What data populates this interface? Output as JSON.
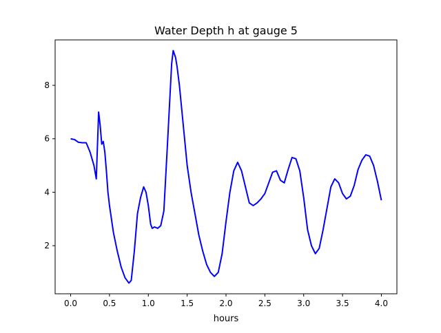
{
  "chart_data": {
    "type": "line",
    "title": "Water Depth h at gauge 5",
    "xlabel": "hours",
    "ylabel": "",
    "xlim": [
      -0.2,
      4.2
    ],
    "ylim": [
      0.2,
      9.7
    ],
    "xticks": [
      0.0,
      0.5,
      1.0,
      1.5,
      2.0,
      2.5,
      3.0,
      3.5,
      4.0
    ],
    "xtick_labels": [
      "0.0",
      "0.5",
      "1.0",
      "1.5",
      "2.0",
      "2.5",
      "3.0",
      "3.5",
      "4.0"
    ],
    "yticks": [
      2,
      4,
      6,
      8
    ],
    "ytick_labels": [
      "2",
      "4",
      "6",
      "8"
    ],
    "grid": false,
    "series": [
      {
        "color": "#0000ff",
        "x": [
          0.0,
          0.05,
          0.1,
          0.15,
          0.2,
          0.25,
          0.3,
          0.33,
          0.36,
          0.38,
          0.4,
          0.42,
          0.44,
          0.46,
          0.48,
          0.5,
          0.55,
          0.6,
          0.65,
          0.7,
          0.75,
          0.78,
          0.82,
          0.86,
          0.9,
          0.94,
          0.97,
          1.0,
          1.03,
          1.05,
          1.08,
          1.12,
          1.16,
          1.2,
          1.25,
          1.3,
          1.32,
          1.35,
          1.37,
          1.4,
          1.45,
          1.5,
          1.55,
          1.6,
          1.65,
          1.7,
          1.75,
          1.8,
          1.85,
          1.9,
          1.95,
          2.0,
          2.05,
          2.1,
          2.15,
          2.2,
          2.25,
          2.3,
          2.35,
          2.4,
          2.45,
          2.5,
          2.55,
          2.6,
          2.65,
          2.7,
          2.75,
          2.8,
          2.85,
          2.9,
          2.95,
          3.0,
          3.05,
          3.1,
          3.15,
          3.2,
          3.25,
          3.3,
          3.35,
          3.4,
          3.45,
          3.5,
          3.55,
          3.6,
          3.65,
          3.7,
          3.75,
          3.8,
          3.85,
          3.9,
          3.95,
          4.0
        ],
        "y": [
          6.0,
          5.97,
          5.87,
          5.85,
          5.85,
          5.5,
          5.0,
          4.5,
          7.0,
          6.5,
          5.8,
          5.9,
          5.5,
          4.8,
          4.0,
          3.5,
          2.5,
          1.8,
          1.2,
          0.8,
          0.6,
          0.7,
          1.8,
          3.2,
          3.8,
          4.2,
          4.0,
          3.5,
          2.8,
          2.65,
          2.7,
          2.65,
          2.75,
          3.3,
          6.0,
          8.8,
          9.3,
          9.05,
          8.7,
          8.0,
          6.5,
          5.0,
          4.0,
          3.2,
          2.4,
          1.8,
          1.3,
          1.0,
          0.85,
          1.0,
          1.7,
          2.9,
          4.0,
          4.8,
          5.12,
          4.8,
          4.2,
          3.6,
          3.5,
          3.6,
          3.75,
          3.95,
          4.35,
          4.75,
          4.8,
          4.45,
          4.35,
          4.85,
          5.3,
          5.25,
          4.8,
          3.8,
          2.6,
          2.0,
          1.7,
          1.9,
          2.6,
          3.4,
          4.2,
          4.5,
          4.35,
          3.95,
          3.75,
          3.85,
          4.25,
          4.85,
          5.2,
          5.4,
          5.35,
          5.0,
          4.4,
          3.7
        ]
      }
    ]
  }
}
